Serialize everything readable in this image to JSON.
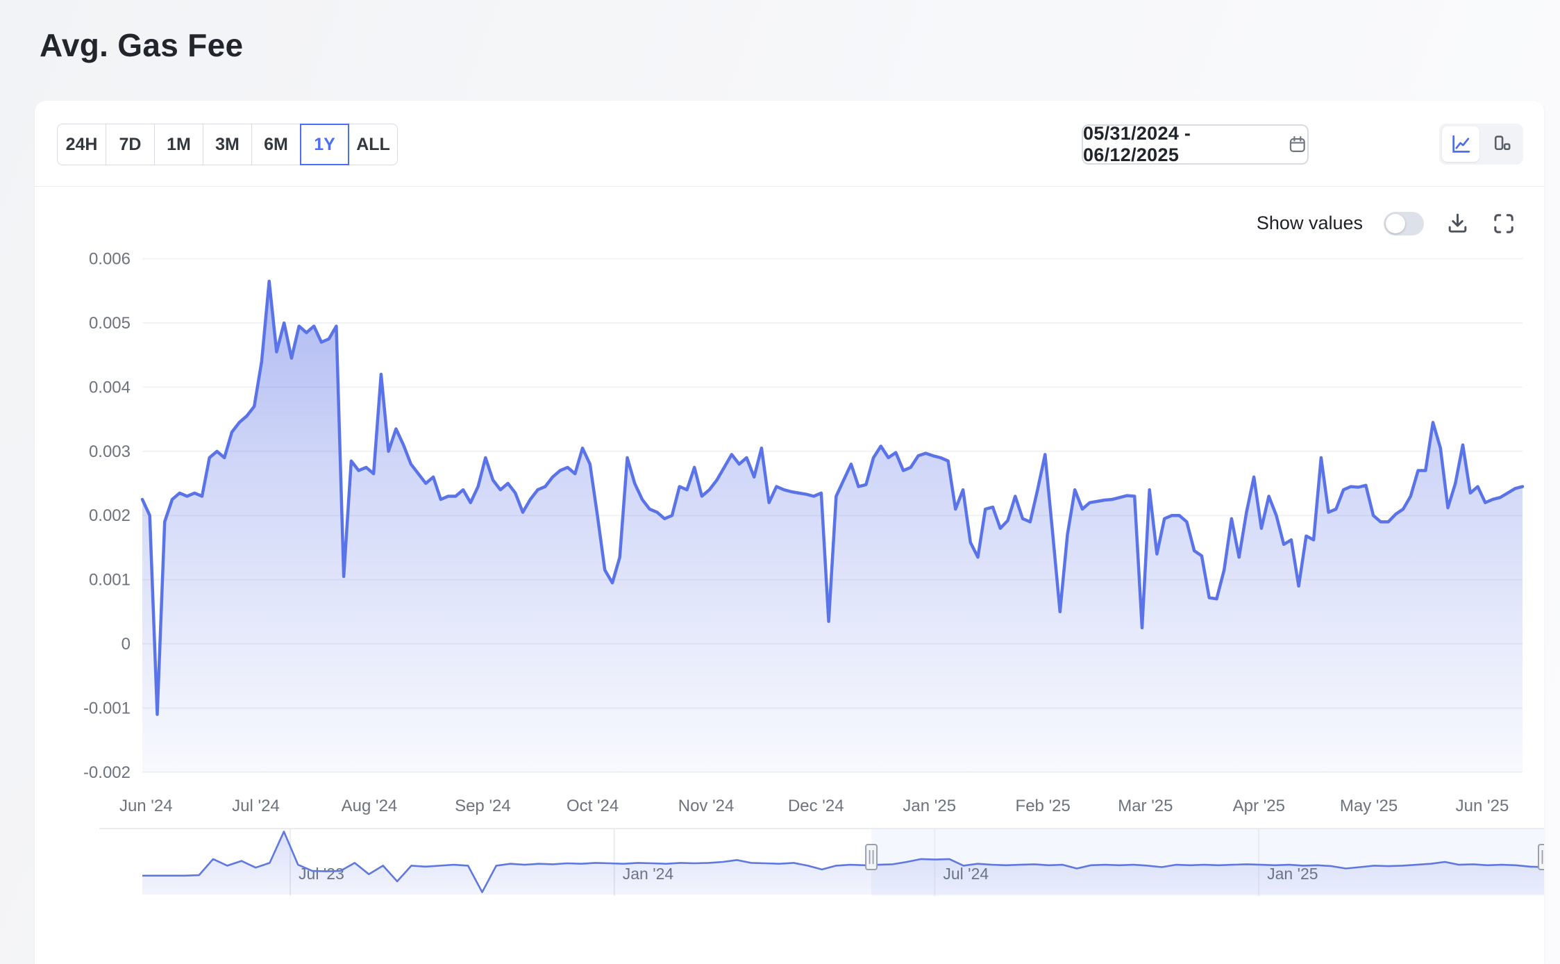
{
  "page": {
    "title": "Avg. Gas Fee"
  },
  "toolbar": {
    "range_buttons": [
      "24H",
      "7D",
      "1M",
      "3M",
      "6M",
      "1Y",
      "ALL"
    ],
    "selected_range": "1Y",
    "date_range_value": "05/31/2024 - 06/12/2025",
    "view_toggle": {
      "options": [
        "line",
        "bar"
      ],
      "selected": "line"
    }
  },
  "chart_header": {
    "show_values_label": "Show values",
    "show_values_on": false
  },
  "icons": {
    "calendar": "calendar-icon",
    "line_view": "line-chart-icon",
    "bar_view": "bar-chart-icon",
    "download": "download-icon",
    "fullscreen": "fullscreen-icon"
  },
  "colors": {
    "accent": "#4c6ef5",
    "line": "#5a73e8",
    "nav_line": "#5f78e0",
    "grid": "#f1f2f5",
    "axis_text": "#6d737c",
    "title_text": "#22252c",
    "fill_top": "rgba(92,115,229,0.52)",
    "fill_mid": "rgba(92,115,229,0.28)",
    "fill_bottom": "rgba(92,115,229,0.04)"
  },
  "chart_data": [
    {
      "type": "area",
      "name": "avg-gas-fee-main",
      "title": "Avg. Gas Fee",
      "x_start": "2024-05-31",
      "x_end": "2025-06-12",
      "total_days": 377,
      "grid": "horizontal",
      "legend": "none",
      "ylim": [
        -0.002,
        0.006
      ],
      "y_unit_factor": 0.001,
      "y_ticks": [
        {
          "label": "0.006",
          "v": 6
        },
        {
          "label": "0.005",
          "v": 5
        },
        {
          "label": "0.004",
          "v": 4
        },
        {
          "label": "0.003",
          "v": 3
        },
        {
          "label": "0.002",
          "v": 2
        },
        {
          "label": "0.001",
          "v": 1
        },
        {
          "label": "0",
          "v": 0
        },
        {
          "label": "-0.001",
          "v": -1
        },
        {
          "label": "-0.002",
          "v": -2
        }
      ],
      "x_ticks": [
        {
          "label": "Jun '24",
          "day": 1
        },
        {
          "label": "Jul '24",
          "day": 31
        },
        {
          "label": "Aug '24",
          "day": 62
        },
        {
          "label": "Sep '24",
          "day": 93
        },
        {
          "label": "Oct '24",
          "day": 123
        },
        {
          "label": "Nov '24",
          "day": 154
        },
        {
          "label": "Dec '24",
          "day": 184
        },
        {
          "label": "Jan '25",
          "day": 215
        },
        {
          "label": "Feb '25",
          "day": 246
        },
        {
          "label": "Mar '25",
          "day": 274
        },
        {
          "label": "Apr '25",
          "day": 305
        },
        {
          "label": "May '25",
          "day": 335
        },
        {
          "label": "Jun '25",
          "day": 366
        }
      ],
      "values_milli": [
        2.25,
        2.0,
        -1.1,
        1.9,
        2.25,
        2.35,
        2.3,
        2.35,
        2.3,
        2.9,
        3.0,
        2.9,
        3.3,
        3.45,
        3.55,
        3.7,
        4.4,
        5.65,
        4.55,
        5.0,
        4.45,
        4.95,
        4.85,
        4.95,
        4.7,
        4.75,
        4.95,
        1.05,
        2.85,
        2.7,
        2.75,
        2.65,
        4.2,
        3.0,
        3.35,
        3.1,
        2.8,
        2.65,
        2.5,
        2.6,
        2.25,
        2.3,
        2.3,
        2.4,
        2.2,
        2.45,
        2.9,
        2.55,
        2.4,
        2.5,
        2.35,
        2.05,
        2.25,
        2.4,
        2.45,
        2.6,
        2.7,
        2.75,
        2.65,
        3.05,
        2.8,
        2.0,
        1.15,
        0.95,
        1.35,
        2.9,
        2.5,
        2.25,
        2.1,
        2.05,
        1.95,
        2.0,
        2.45,
        2.4,
        2.75,
        2.3,
        2.4,
        2.55,
        2.75,
        2.95,
        2.8,
        2.9,
        2.6,
        3.05,
        2.2,
        2.45,
        2.4,
        2.37,
        2.35,
        2.33,
        2.3,
        2.35,
        0.35,
        2.3,
        2.55,
        2.8,
        2.45,
        2.48,
        2.9,
        3.08,
        2.9,
        2.98,
        2.7,
        2.75,
        2.93,
        2.97,
        2.93,
        2.9,
        2.85,
        2.1,
        2.4,
        1.58,
        1.35,
        2.1,
        2.13,
        1.8,
        1.92,
        2.3,
        1.95,
        1.9,
        2.4,
        2.95,
        1.75,
        0.5,
        1.7,
        2.4,
        2.1,
        2.2,
        2.22,
        2.24,
        2.25,
        2.28,
        2.31,
        2.3,
        0.25,
        2.4,
        1.4,
        1.95,
        2.0,
        2.0,
        1.9,
        1.45,
        1.37,
        0.72,
        0.7,
        1.15,
        1.95,
        1.35,
        2.05,
        2.6,
        1.8,
        2.3,
        2.0,
        1.55,
        1.62,
        0.9,
        1.68,
        1.62,
        2.9,
        2.05,
        2.1,
        2.4,
        2.45,
        2.44,
        2.47,
        2.0,
        1.9,
        1.9,
        2.02,
        2.1,
        2.3,
        2.7,
        2.7,
        3.45,
        3.05,
        2.12,
        2.5,
        3.1,
        2.35,
        2.45,
        2.2,
        2.25,
        2.28,
        2.35,
        2.42,
        2.45
      ]
    },
    {
      "type": "area",
      "role": "navigator",
      "name": "avg-gas-fee-navigator",
      "x_start": "2023-04-08",
      "x_end": "2025-06-12",
      "total_days": 796,
      "x_ticks": [
        {
          "label": "Jul '23",
          "day": 84
        },
        {
          "label": "Jan '24",
          "day": 268
        },
        {
          "label": "Jul '24",
          "day": 450
        },
        {
          "label": "Jan '25",
          "day": 634
        }
      ],
      "selection": {
        "from": "05/31/2024",
        "to": "06/12/2025",
        "from_day": 414,
        "to_day": 796
      },
      "y_unit_factor": 0.001,
      "values_milli": [
        0.85,
        0.85,
        0.85,
        0.85,
        0.9,
        2.6,
        1.9,
        2.4,
        1.7,
        2.2,
        5.5,
        2.0,
        1.35,
        1.3,
        1.35,
        2.2,
        1.0,
        1.9,
        0.25,
        1.9,
        1.8,
        1.9,
        2.0,
        1.9,
        -0.9,
        1.9,
        2.1,
        2.0,
        2.1,
        2.05,
        2.15,
        2.1,
        2.2,
        2.15,
        2.1,
        2.2,
        2.15,
        2.1,
        2.2,
        2.15,
        2.2,
        2.3,
        2.5,
        2.2,
        2.15,
        2.1,
        2.2,
        1.9,
        1.5,
        1.9,
        2.0,
        1.95,
        2.0,
        2.05,
        2.3,
        2.6,
        2.55,
        2.6,
        1.9,
        2.1,
        2.0,
        1.95,
        2.0,
        2.05,
        1.95,
        2.0,
        1.6,
        1.95,
        2.0,
        1.95,
        2.0,
        1.9,
        1.75,
        2.0,
        1.95,
        2.0,
        1.95,
        2.0,
        2.05,
        2.0,
        1.95,
        2.0,
        1.9,
        1.95,
        1.85,
        1.6,
        1.75,
        1.9,
        1.85,
        1.9,
        2.0,
        2.1,
        2.3,
        2.0,
        2.05,
        1.95,
        2.0,
        1.95,
        1.8,
        1.75
      ]
    }
  ]
}
